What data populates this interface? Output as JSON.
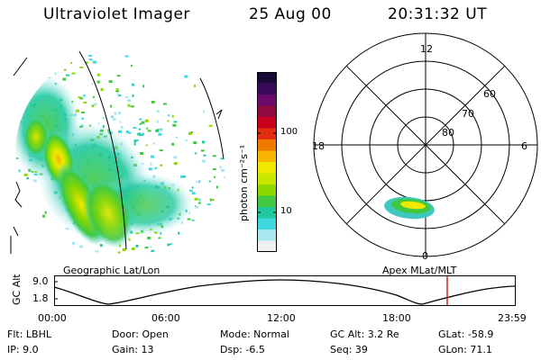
{
  "header": {
    "instrument": "Ultraviolet Imager",
    "date": "25 Aug 00",
    "time": "20:31:32 UT"
  },
  "colorbar": {
    "label": "photon cm⁻²s⁻¹",
    "ticks": [
      "100",
      "10"
    ],
    "colors": [
      "#1a0a3a",
      "#3a0a5a",
      "#6a0a6a",
      "#900a40",
      "#c8001e",
      "#e03010",
      "#f07a00",
      "#f8b400",
      "#f0e800",
      "#c8e800",
      "#8cd800",
      "#40c840",
      "#20c8a0",
      "#40d8e0",
      "#a8e8f0",
      "#f0f0f0"
    ]
  },
  "polar_grid": {
    "mlt_labels": [
      "12",
      "18",
      "6",
      "0"
    ],
    "mlat_labels": [
      "60",
      "70",
      "80"
    ]
  },
  "track": {
    "left_title": "Geographic Lat/Lon",
    "right_title": "Apex MLat/MLT",
    "y_axis_label": "GC Alt",
    "y_ticks": [
      "9.0",
      "1.8"
    ],
    "x_ticks": [
      "00:00",
      "06:00",
      "12:00",
      "18:00",
      "23:59"
    ]
  },
  "info": {
    "flt": "Flt:  LBHL",
    "ip": "IP:  9.0",
    "door": "Door: Open",
    "gain": "Gain: 13",
    "mode": "Mode: Normal",
    "dsp": "Dsp:    -6.5",
    "gc_alt": "GC Alt: 3.2 Re",
    "seq": "Seq: 39",
    "glat": "GLat:  -58.9",
    "glon": "GLon:  71.1"
  }
}
